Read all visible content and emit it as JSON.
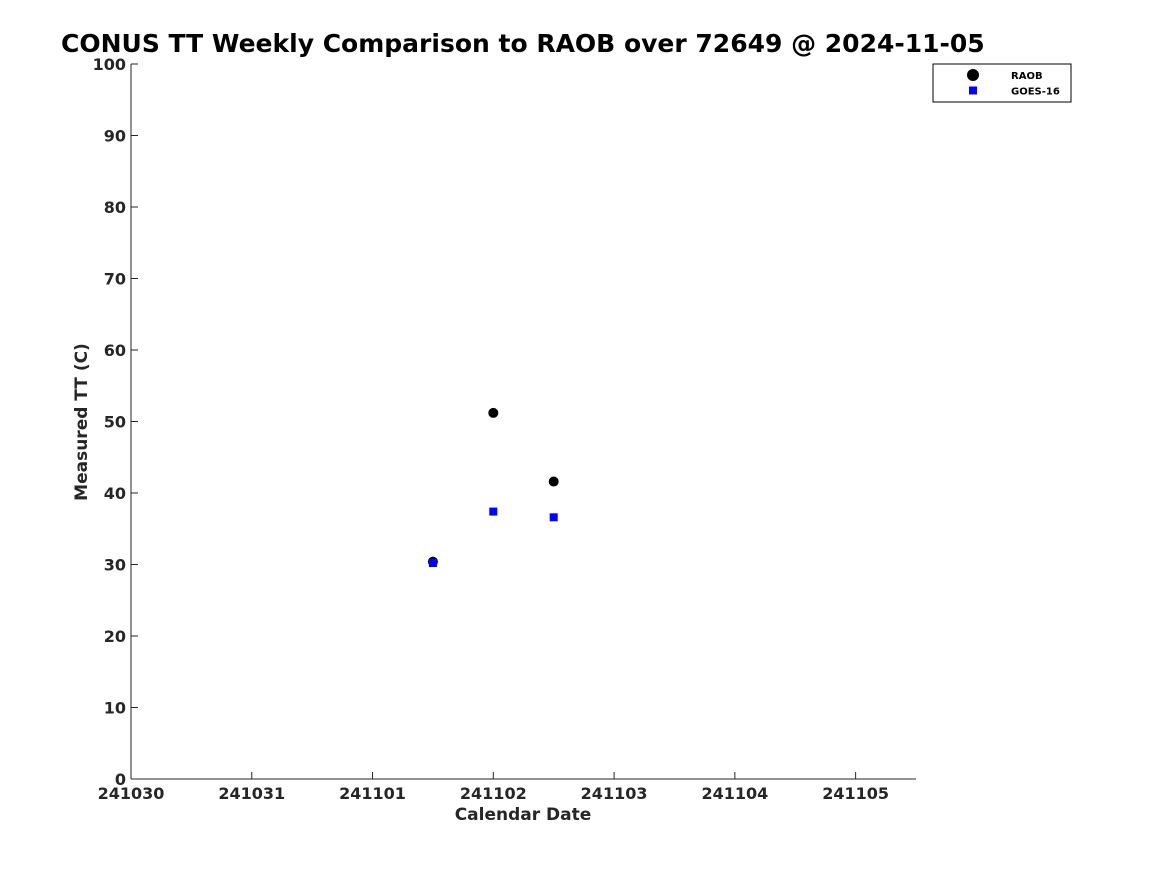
{
  "chart_data": {
    "type": "scatter",
    "title": "CONUS TT Weekly Comparison to RAOB over 72649 @ 2024-11-05",
    "xlabel": "Calendar Date",
    "ylabel": "Measured TT (C)",
    "xlim": [
      "2024-10-30",
      "2024-11-05T12:00"
    ],
    "ylim": [
      0,
      100
    ],
    "x_ticks": [
      "241030",
      "241031",
      "241101",
      "241102",
      "241103",
      "241104",
      "241105"
    ],
    "y_ticks": [
      "0",
      "10",
      "20",
      "30",
      "40",
      "50",
      "60",
      "70",
      "80",
      "90",
      "100"
    ],
    "grid": false,
    "legend_position": "top-right",
    "series": [
      {
        "name": "RAOB",
        "marker": "circle",
        "color": "#000000",
        "x": [
          "2024-11-01T12:00",
          "2024-11-02T00:00",
          "2024-11-02T12:00"
        ],
        "y": [
          30.4,
          51.2,
          41.6
        ]
      },
      {
        "name": "GOES-16",
        "marker": "square",
        "color": "#0000ff",
        "x": [
          "2024-11-01T12:00",
          "2024-11-02T00:00",
          "2024-11-02T12:00"
        ],
        "y": [
          30.2,
          37.4,
          36.6
        ]
      }
    ]
  }
}
